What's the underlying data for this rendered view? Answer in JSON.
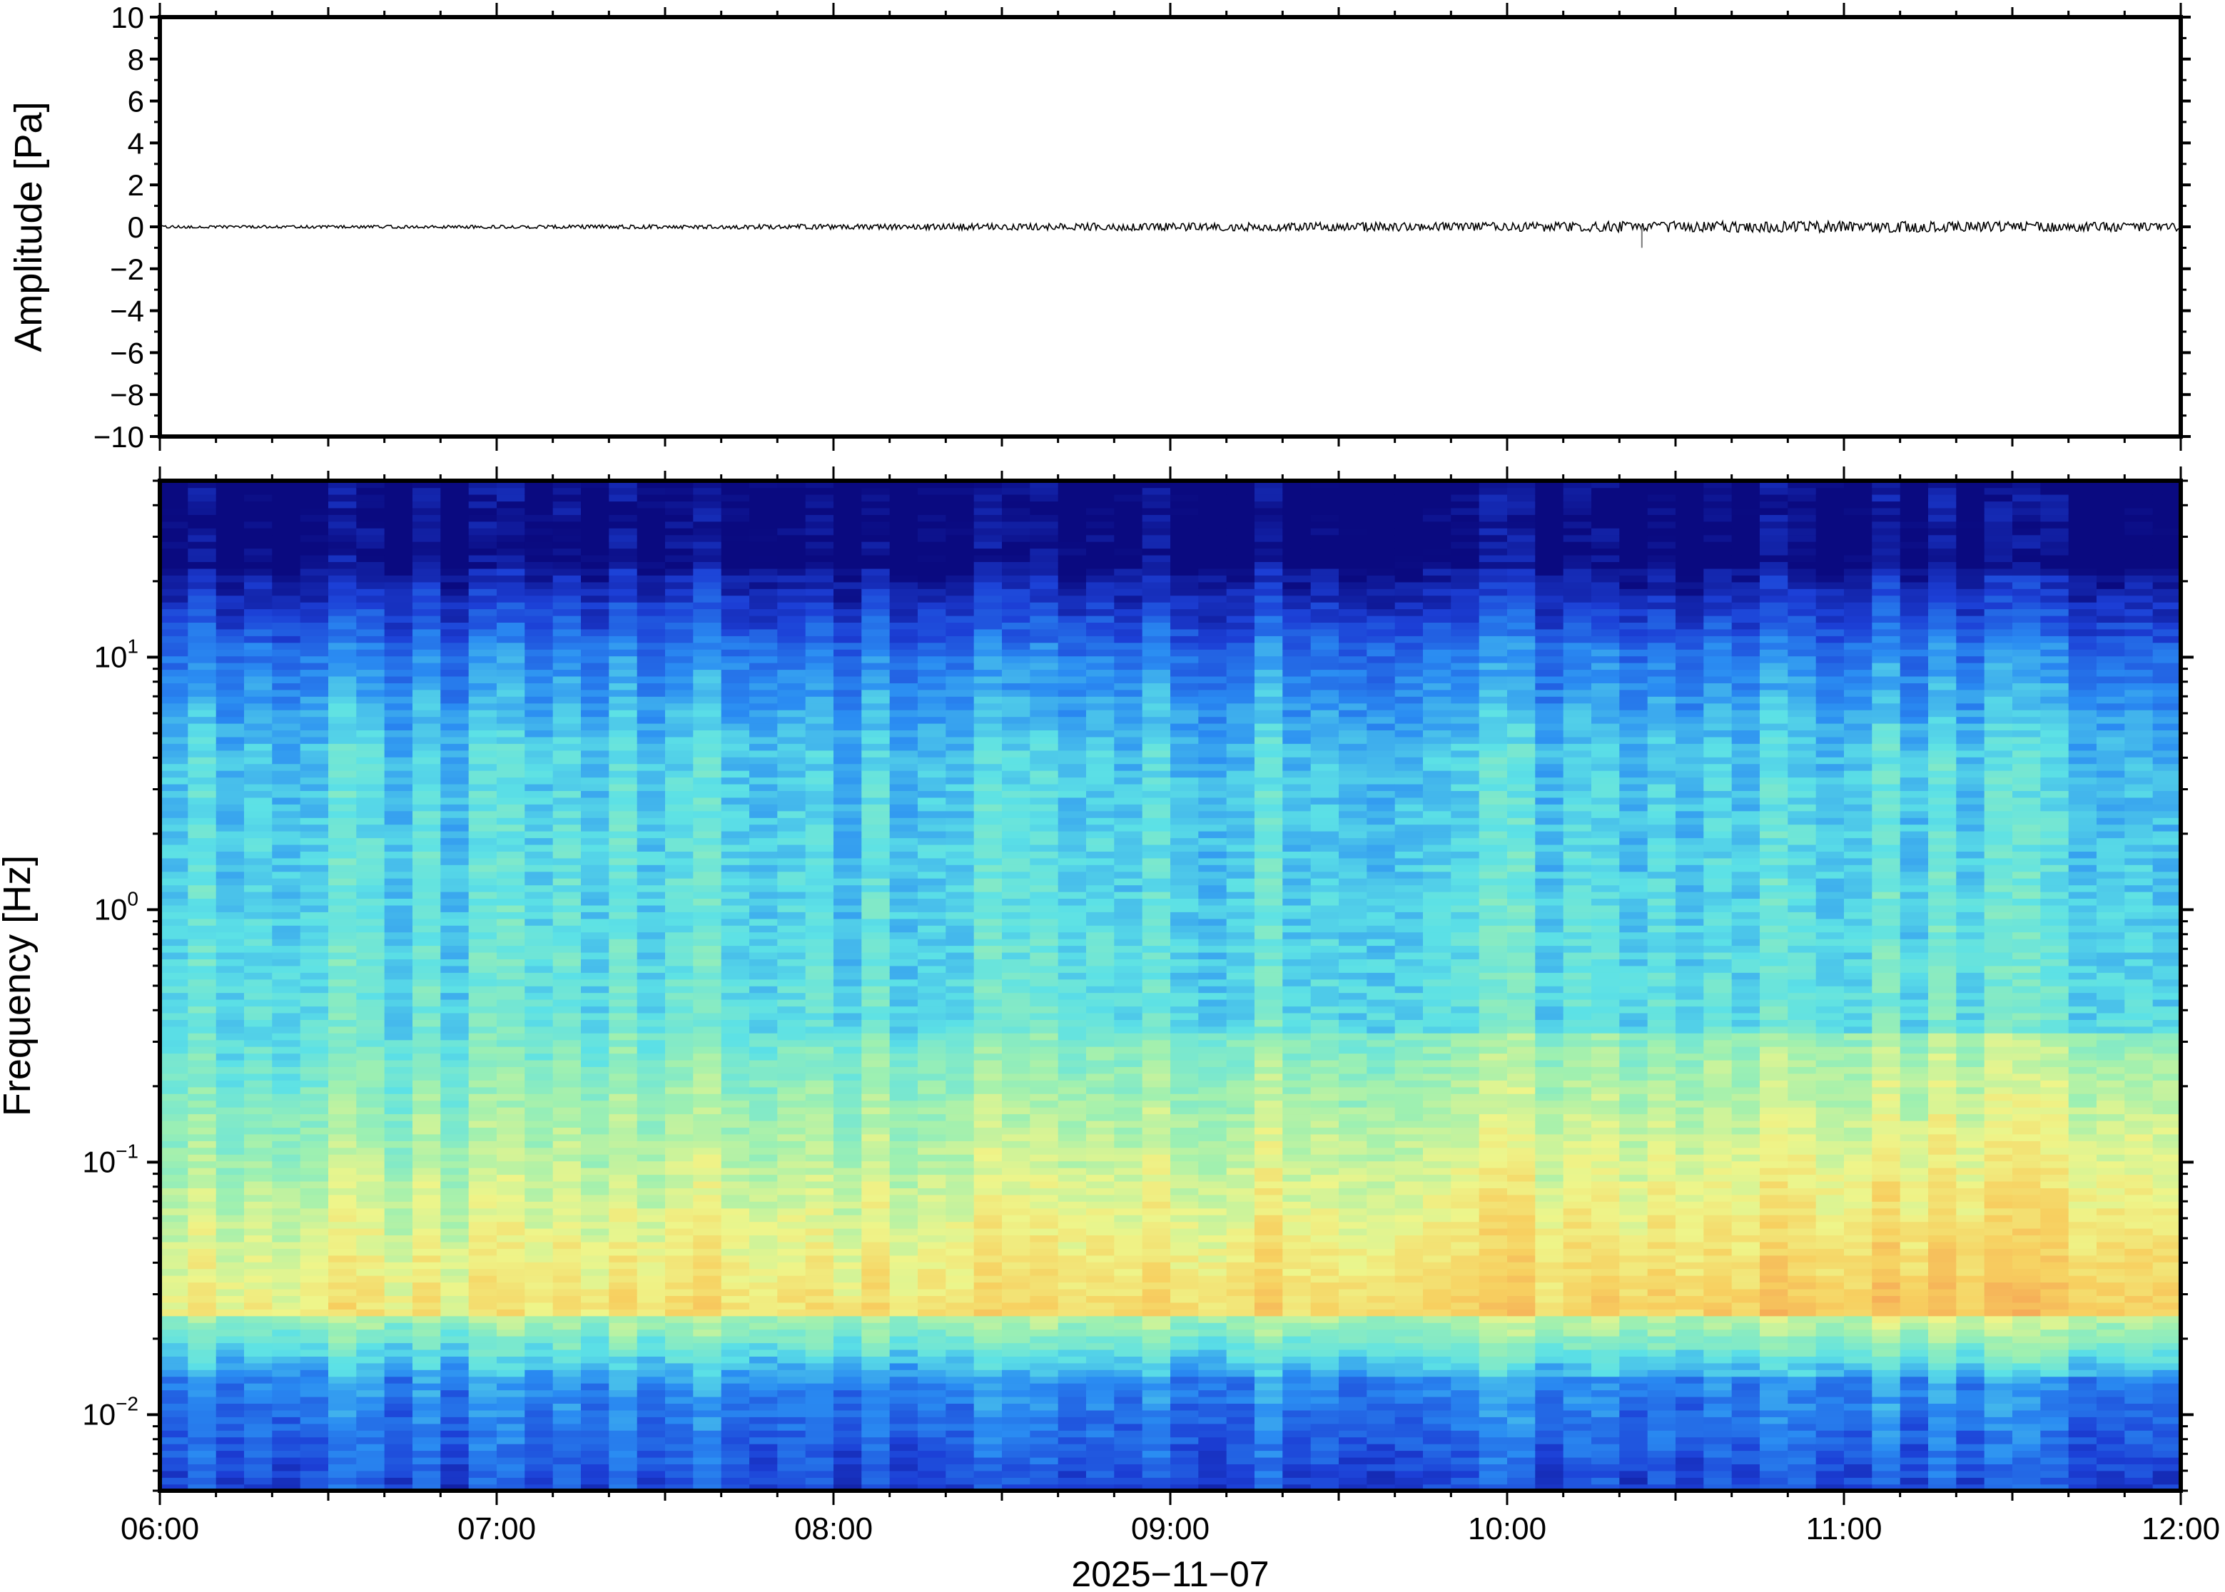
{
  "chart_data": [
    {
      "type": "line",
      "panel": "waveform",
      "ylabel": "Amplitude [Pa]",
      "ylim": [
        -10,
        10
      ],
      "y_ticks": [
        "10",
        "8",
        "6",
        "4",
        "2",
        "0",
        "−2",
        "−4",
        "−6",
        "−8",
        "−10"
      ],
      "y_tick_values": [
        10,
        8,
        6,
        4,
        2,
        0,
        -2,
        -4,
        -6,
        -8,
        -10
      ],
      "x_range": [
        "06:00",
        "12:00"
      ],
      "series_color": "#000000",
      "trace_envelope": [
        {
          "t": "06:00",
          "amp": 0.05
        },
        {
          "t": "07:00",
          "amp": 0.06
        },
        {
          "t": "07:45",
          "amp": 0.08
        },
        {
          "t": "08:30",
          "amp": 0.12
        },
        {
          "t": "09:00",
          "amp": 0.14
        },
        {
          "t": "09:30",
          "amp": 0.16
        },
        {
          "t": "10:00",
          "amp": 0.16
        },
        {
          "t": "10:24",
          "amp": -1.0
        },
        {
          "t": "10:30",
          "amp": 0.2
        },
        {
          "t": "11:00",
          "amp": 0.2
        },
        {
          "t": "11:30",
          "amp": 0.18
        },
        {
          "t": "12:00",
          "amp": 0.15
        }
      ],
      "grid": false
    },
    {
      "type": "heatmap",
      "panel": "spectrogram",
      "ylabel": "Frequency [Hz]",
      "xlabel": "2025−11−07",
      "yscale": "log",
      "ylim_hz": [
        0.005,
        50
      ],
      "y_ticks": [
        {
          "base": "10",
          "exp": "1",
          "value": 10
        },
        {
          "base": "10",
          "exp": "0",
          "value": 1
        },
        {
          "base": "10",
          "exp": "−1",
          "value": 0.1
        },
        {
          "base": "10",
          "exp": "−2",
          "value": 0.01
        }
      ],
      "x_ticks": [
        "06:00",
        "07:00",
        "08:00",
        "09:00",
        "10:00",
        "11:00",
        "12:00"
      ],
      "colormap": [
        "#0a0a80",
        "#1c3fd6",
        "#2a8cf2",
        "#5ce1e6",
        "#9ff0b0",
        "#eef58a",
        "#f7d060",
        "#f5a555"
      ],
      "time_columns": 72,
      "grid": false
    }
  ]
}
